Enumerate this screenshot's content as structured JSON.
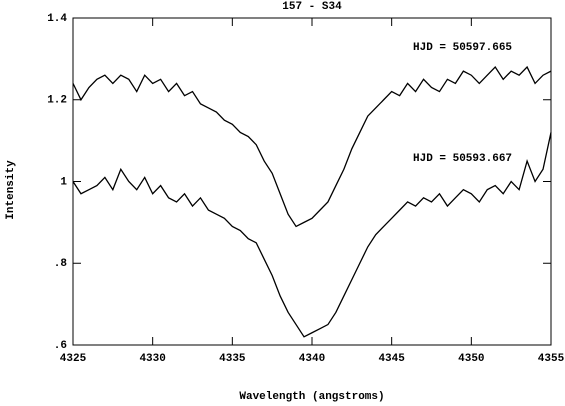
{
  "chart_data": {
    "type": "line",
    "title": "157 - S34",
    "x_label": "Wavelength (angstroms)",
    "y_label": "Intensity",
    "x": [
      4325,
      4325.5,
      4326,
      4326.5,
      4327,
      4327.5,
      4328,
      4328.5,
      4329,
      4329.5,
      4330,
      4330.5,
      4331,
      4331.5,
      4332,
      4332.5,
      4333,
      4333.5,
      4334,
      4334.5,
      4335,
      4335.5,
      4336,
      4336.5,
      4337,
      4337.5,
      4338,
      4338.5,
      4339,
      4339.5,
      4340,
      4340.5,
      4341,
      4341.5,
      4342,
      4342.5,
      4343,
      4343.5,
      4344,
      4344.5,
      4345,
      4345.5,
      4346,
      4346.5,
      4347,
      4347.5,
      4348,
      4348.5,
      4349,
      4349.5,
      4350,
      4350.5,
      4351,
      4351.5,
      4352,
      4352.5,
      4353,
      4353.5,
      4354,
      4354.5,
      4355
    ],
    "series": [
      {
        "name": "HJD = 50597.665",
        "color": "#000000",
        "values": [
          1.24,
          1.2,
          1.23,
          1.25,
          1.26,
          1.24,
          1.26,
          1.25,
          1.22,
          1.26,
          1.24,
          1.25,
          1.22,
          1.24,
          1.21,
          1.22,
          1.19,
          1.18,
          1.17,
          1.15,
          1.14,
          1.12,
          1.11,
          1.09,
          1.05,
          1.02,
          0.97,
          0.92,
          0.89,
          0.9,
          0.91,
          0.93,
          0.95,
          0.99,
          1.03,
          1.08,
          1.12,
          1.16,
          1.18,
          1.2,
          1.22,
          1.21,
          1.24,
          1.22,
          1.25,
          1.23,
          1.22,
          1.25,
          1.24,
          1.27,
          1.26,
          1.24,
          1.26,
          1.28,
          1.25,
          1.27,
          1.26,
          1.28,
          1.24,
          1.26,
          1.27
        ]
      },
      {
        "name": "HJD = 50593.667",
        "color": "#000000",
        "values": [
          1.0,
          0.97,
          0.98,
          0.99,
          1.01,
          0.98,
          1.03,
          1.0,
          0.98,
          1.01,
          0.97,
          0.99,
          0.96,
          0.95,
          0.97,
          0.94,
          0.96,
          0.93,
          0.92,
          0.91,
          0.89,
          0.88,
          0.86,
          0.85,
          0.81,
          0.77,
          0.72,
          0.68,
          0.65,
          0.62,
          0.63,
          0.64,
          0.65,
          0.68,
          0.72,
          0.76,
          0.8,
          0.84,
          0.87,
          0.89,
          0.91,
          0.93,
          0.95,
          0.94,
          0.96,
          0.95,
          0.97,
          0.94,
          0.96,
          0.98,
          0.97,
          0.95,
          0.98,
          0.99,
          0.97,
          1.0,
          0.98,
          1.05,
          1.0,
          1.03,
          1.12
        ]
      }
    ],
    "xlim": [
      4325,
      4355
    ],
    "xticks": [
      4325,
      4330,
      4335,
      4340,
      4345,
      4350,
      4355
    ],
    "ylim": [
      0.6,
      1.4
    ],
    "yticks": [
      1.4,
      1.2,
      1,
      {
        "value": 0.8,
        "label": ".8"
      },
      {
        "value": 0.6,
        "label": ".6"
      }
    ]
  }
}
